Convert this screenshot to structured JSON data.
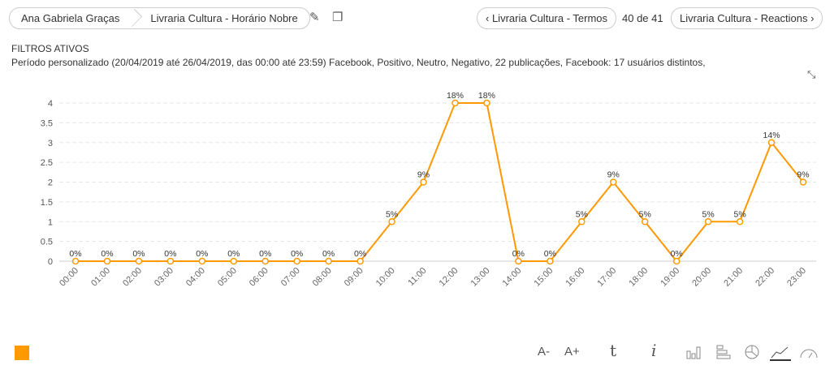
{
  "breadcrumb": [
    "Ana Gabriela Graças",
    "Livraria Cultura - Horário Nobre"
  ],
  "nav": {
    "prev": "Livraria Cultura - Termos",
    "position": "40 de 41",
    "next": "Livraria Cultura - Reactions"
  },
  "filters": {
    "title": "FILTROS ATIVOS",
    "text": "Período personalizado (20/04/2019 até 26/04/2019, das 00:00 até 23:59) Facebook, Positivo, Neutro, Negativo, 22 publicações, Facebook: 17 usuários distintos,"
  },
  "toolbar": {
    "font_decrease": "A-",
    "font_increase": "A+",
    "icons": [
      "text-icon",
      "info-icon",
      "bar-chart-icon",
      "horizontal-bar-icon",
      "pie-chart-icon",
      "line-chart-icon",
      "gauge-icon"
    ],
    "active": "line-chart-icon"
  },
  "legend_color": "#ff9900",
  "chart_data": {
    "type": "line",
    "categories": [
      "00:00",
      "01:00",
      "02:00",
      "03:00",
      "04:00",
      "05:00",
      "06:00",
      "07:00",
      "08:00",
      "09:00",
      "10:00",
      "11:00",
      "12:00",
      "13:00",
      "14:00",
      "15:00",
      "16:00",
      "17:00",
      "18:00",
      "19:00",
      "20:00",
      "21:00",
      "22:00",
      "23:00"
    ],
    "values": [
      0,
      0,
      0,
      0,
      0,
      0,
      0,
      0,
      0,
      0,
      1,
      2,
      4,
      4,
      0,
      0,
      1,
      2,
      1,
      0,
      1,
      1,
      3,
      2
    ],
    "data_labels": [
      "0%",
      "0%",
      "0%",
      "0%",
      "0%",
      "0%",
      "0%",
      "0%",
      "0%",
      "0%",
      "5%",
      "9%",
      "18%",
      "18%",
      "0%",
      "0%",
      "5%",
      "9%",
      "5%",
      "0%",
      "5%",
      "5%",
      "14%",
      "9%"
    ],
    "yticks": [
      "0",
      "0.5",
      "1",
      "1.5",
      "2",
      "2.5",
      "3",
      "3.5",
      "4"
    ],
    "ylim": [
      0,
      4
    ],
    "grid": true,
    "color": "#ff9900"
  }
}
